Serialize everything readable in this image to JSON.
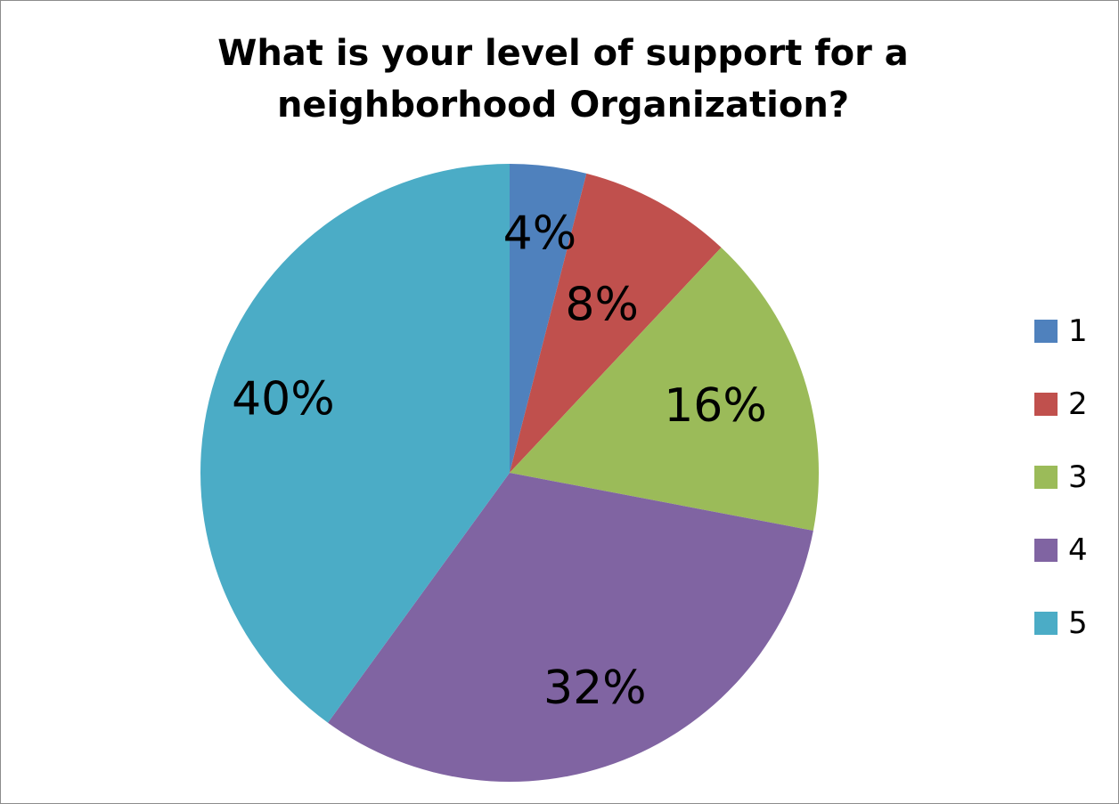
{
  "chart_data": {
    "type": "pie",
    "title": [
      "What is your level of support for a",
      "neighborhood Organization?"
    ],
    "categories": [
      "1",
      "2",
      "3",
      "4",
      "5"
    ],
    "values": [
      4,
      8,
      16,
      32,
      40
    ],
    "data_labels": [
      "4%",
      "8%",
      "16%",
      "32%",
      "40%"
    ],
    "colors": [
      "#4f81bd",
      "#c0504d",
      "#9bbb59",
      "#8064a2",
      "#4bacc6"
    ],
    "legend_position": "right",
    "start_angle": "12 o'clock, clockwise"
  }
}
